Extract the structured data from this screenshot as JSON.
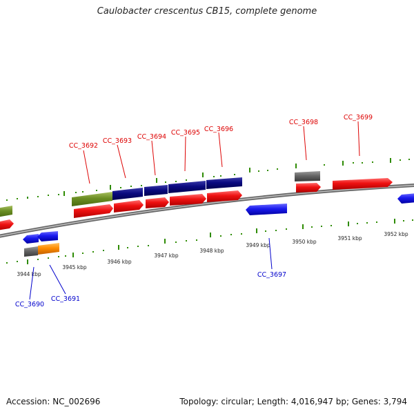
{
  "title": "Caulobacter crescentus CB15, complete genome",
  "footer": {
    "accession": "Accession: NC_002696",
    "summary": "Topology: circular; Length: 4,016,947 bp; Genes: 3,794"
  },
  "colors": {
    "forward_label": "#dd0000",
    "reverse_label": "#0000cc",
    "tick": "#2e8b00",
    "backbone": "#888888",
    "cds_forward": "#ee1111",
    "cds_reverse": "#1a1aee",
    "navy": "#0a0a80",
    "olive": "#6b8e23",
    "gray": "#666666",
    "orange": "#ff8c00"
  },
  "scale_labels": [
    "3944 kbp",
    "3945 kbp",
    "3946 kbp",
    "3947 kbp",
    "3948 kbp",
    "3949 kbp",
    "3950 kbp",
    "3951 kbp",
    "3952 kbp"
  ],
  "forward_genes": [
    "CC_3692",
    "CC_3693",
    "CC_3694",
    "CC_3695",
    "CC_3696",
    "CC_3698",
    "CC_3699"
  ],
  "reverse_genes": [
    "CC_3690",
    "CC_3691",
    "CC_3697"
  ]
}
